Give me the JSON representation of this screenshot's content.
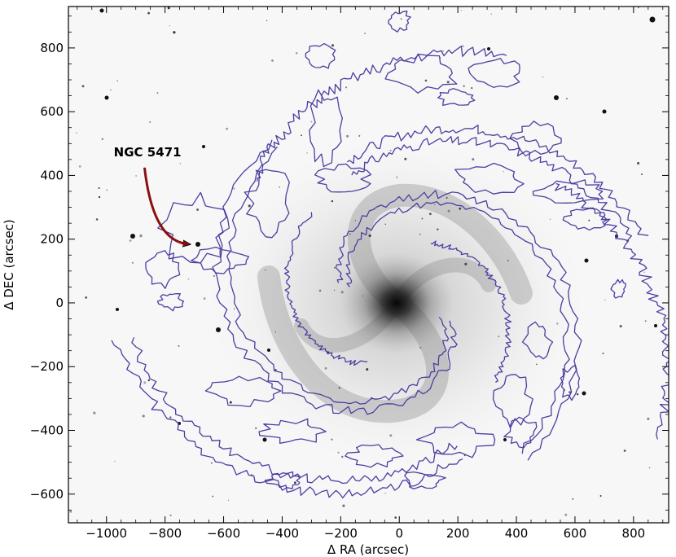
{
  "chart_data": {
    "type": "scatter",
    "title": "",
    "xlabel": "Δ RA (arcsec)",
    "ylabel": "Δ DEC (arcsec)",
    "xlim": [
      1130,
      -920
    ],
    "ylim": [
      -690,
      930
    ],
    "x_ticks": [
      {
        "value": 1000,
        "label": "−1000"
      },
      {
        "value": 800,
        "label": "−800"
      },
      {
        "value": 600,
        "label": "−600"
      },
      {
        "value": 400,
        "label": "−400"
      },
      {
        "value": 200,
        "label": "−200"
      },
      {
        "value": 0,
        "label": "0"
      },
      {
        "value": -200,
        "label": "200"
      },
      {
        "value": -400,
        "label": "400"
      },
      {
        "value": -600,
        "label": "600"
      },
      {
        "value": -800,
        "label": "800"
      }
    ],
    "y_ticks": [
      {
        "value": 800,
        "label": "800"
      },
      {
        "value": 600,
        "label": "600"
      },
      {
        "value": 400,
        "label": "400"
      },
      {
        "value": 200,
        "label": "200"
      },
      {
        "value": 0,
        "label": "0"
      },
      {
        "value": -200,
        "label": "−200"
      },
      {
        "value": -400,
        "label": "−400"
      },
      {
        "value": -600,
        "label": "−600"
      }
    ],
    "grid": false,
    "annotation": {
      "text": "NGC 5471",
      "text_at": [
        860,
        440
      ],
      "arrow_from": [
        870,
        440
      ],
      "arrow_to": [
        725,
        185
      ]
    },
    "contour_color": "#4a3fa0",
    "arrow_color": "#8b0f0f"
  }
}
